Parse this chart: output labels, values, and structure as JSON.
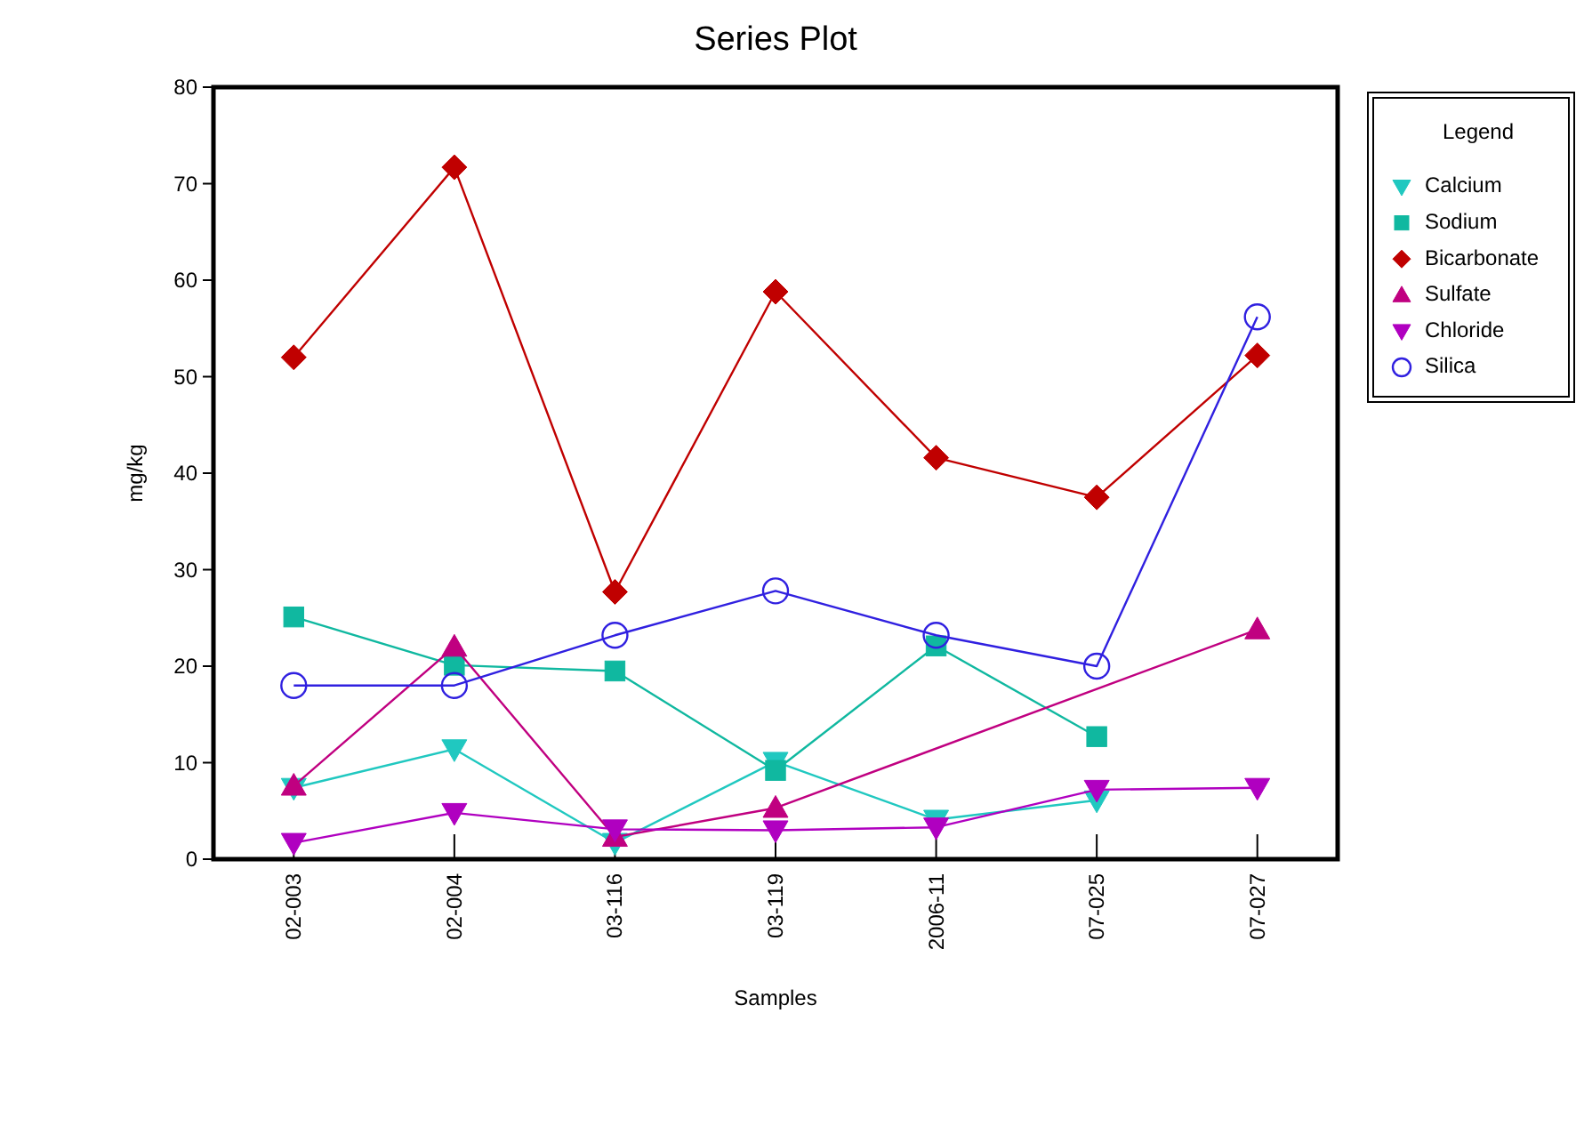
{
  "chart_data": {
    "type": "line",
    "title": "Series Plot",
    "xlabel": "Samples",
    "ylabel": "mg/kg",
    "legend_title": "Legend",
    "legend": "top right",
    "grid": false,
    "categories": [
      "02-003",
      "02-004",
      "03-116",
      "03-119",
      "2006-11",
      "07-025",
      "07-027"
    ],
    "ylim": [
      0,
      80
    ],
    "yticks": [
      0,
      10,
      20,
      30,
      40,
      50,
      60,
      70,
      80
    ],
    "series": [
      {
        "name": "Calcium",
        "color": "#20c8c0",
        "marker": "triangle-down",
        "values": [
          7.4,
          11.4,
          1.7,
          10.1,
          4.1,
          6.1,
          null
        ]
      },
      {
        "name": "Sodium",
        "color": "#10b8a0",
        "marker": "square",
        "values": [
          25.1,
          20.1,
          19.5,
          9.2,
          22.1,
          12.7,
          null
        ]
      },
      {
        "name": "Bicarbonate",
        "color": "#c00000",
        "marker": "diamond",
        "values": [
          52,
          71.7,
          27.7,
          58.8,
          41.6,
          37.5,
          52.2
        ]
      },
      {
        "name": "Sulfate",
        "color": "#c00080",
        "marker": "triangle",
        "values": [
          7.6,
          22,
          2.3,
          5.3,
          null,
          null,
          23.8
        ]
      },
      {
        "name": "Chloride",
        "color": "#b000c0",
        "marker": "triangle-down",
        "values": [
          1.7,
          4.8,
          3.1,
          3.0,
          3.3,
          7.2,
          7.4
        ]
      },
      {
        "name": "Silica",
        "color": "#3020e0",
        "marker": "circle",
        "values": [
          18,
          18,
          23.2,
          27.8,
          23.2,
          20,
          56.2
        ]
      }
    ]
  }
}
